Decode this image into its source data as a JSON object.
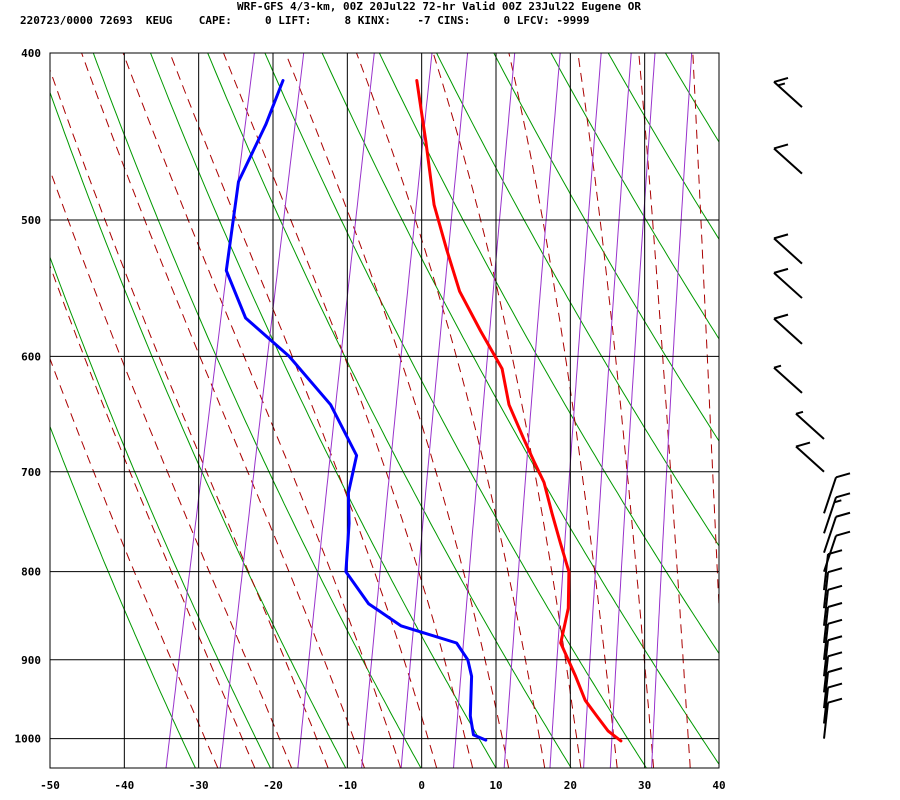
{
  "header": {
    "line1": "WRF-GFS 4/3-km, 00Z 20Jul22 72-hr Valid 00Z 23Jul22 Eugene OR",
    "line2": "220723/0000 72693  KEUG    CAPE:     0 LIFT:     8 KINX:    -7 CINS:     0 LFCV: -9999"
  },
  "colors": {
    "temperature": "#ff0000",
    "dewpoint": "#0000ff",
    "dry_adiabat": "#009900",
    "moist_adiabat": "#aa0000",
    "mixing_ratio": "#9933cc",
    "grid": "#000000",
    "wind_barb": "#000000"
  },
  "chart_data": {
    "type": "skew-t sounding",
    "title": "",
    "xlabel": "",
    "ylabel": "",
    "xlim": [
      -50,
      40
    ],
    "ylim": [
      1040,
      400
    ],
    "x_ticks": [
      "-50",
      "-40",
      "-30",
      "-20",
      "-10",
      "0",
      "10",
      "20",
      "30",
      "40"
    ],
    "y_ticks": [
      "400",
      "500",
      "600",
      "700",
      "800",
      "900",
      "1000"
    ],
    "grid": true,
    "series": [
      {
        "kind": "temperature",
        "x": [
          26,
          24,
          22,
          20,
          18,
          15,
          15,
          15,
          14,
          12,
          10,
          8,
          6,
          4,
          1,
          -1,
          -5,
          -9,
          -12,
          -15,
          -18,
          -21
        ],
        "y": [
          1003,
          990,
          970,
          950,
          920,
          880,
          860,
          840,
          800,
          770,
          740,
          710,
          690,
          670,
          640,
          610,
          580,
          550,
          520,
          490,
          450,
          415
        ]
      },
      {
        "kind": "dewpoint",
        "x": [
          7.8,
          6,
          5,
          4,
          3,
          1,
          -7,
          -12,
          -16,
          -17,
          -18,
          -18,
          -23,
          -30,
          -37,
          -41,
          -42,
          -40,
          -39
        ],
        "y": [
          1002,
          995,
          970,
          920,
          900,
          880,
          860,
          835,
          800,
          750,
          720,
          685,
          640,
          600,
          570,
          535,
          475,
          440,
          415
        ]
      }
    ],
    "wind_profile": {
      "pressure": [
        1000,
        980,
        960,
        940,
        920,
        900,
        880,
        860,
        840,
        820,
        800,
        780,
        760,
        740,
        700,
        670,
        630,
        590,
        555,
        530,
        470,
        430
      ],
      "speed_kt": [
        10,
        10,
        10,
        10,
        10,
        10,
        10,
        10,
        10,
        10,
        10,
        10,
        15,
        10,
        10,
        5,
        5,
        10,
        10,
        10,
        10,
        15
      ]
    }
  }
}
